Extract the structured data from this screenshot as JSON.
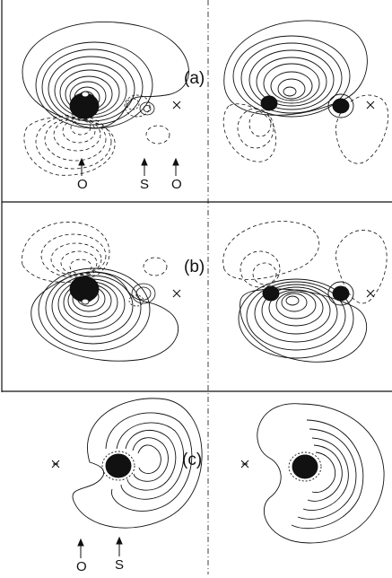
{
  "panels": [
    {
      "id": "a",
      "label": "(a)"
    },
    {
      "id": "b",
      "label": "(b)"
    },
    {
      "id": "c",
      "label": "(c)"
    }
  ],
  "atom_labels": {
    "a": [
      "O",
      "S",
      "O"
    ],
    "c": [
      "O",
      "S"
    ]
  },
  "line_styles": {
    "positive": "solid",
    "negative": "dashed"
  },
  "colors": {
    "ink": "#111111",
    "background": "#ffffff"
  }
}
